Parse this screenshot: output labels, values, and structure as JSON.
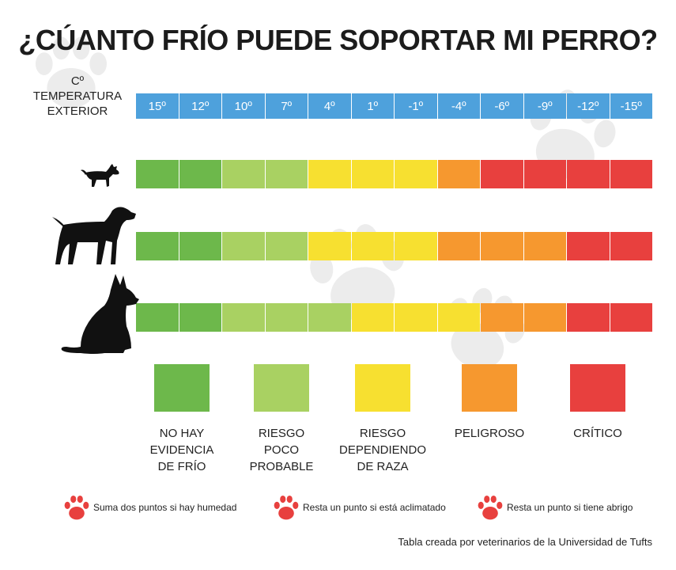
{
  "title": "¿CÚANTO FRÍO PUEDE SOPORTAR MI PERRO?",
  "temperature_label": "Cº\nTEMPERATURA\nEXTERIOR",
  "temperatures": [
    "15º",
    "12º",
    "10º",
    "7º",
    "4º",
    "1º",
    "-1º",
    "-4º",
    "-6º",
    "-9º",
    "-12º",
    "-15º"
  ],
  "colors": {
    "temp_blue": "#4ea1dc",
    "no_risk": "#6db84b",
    "low_risk": "#a9d162",
    "breed_risk": "#f7e030",
    "dangerous": "#f6982f",
    "critical": "#e8403e",
    "paw_red": "#e8403e",
    "paw_grey": "#e6e6e6"
  },
  "dog_rows": [
    {
      "size": "small",
      "icon": "small-dog-icon",
      "levels": [
        "no_risk",
        "no_risk",
        "low_risk",
        "low_risk",
        "breed_risk",
        "breed_risk",
        "breed_risk",
        "dangerous",
        "critical",
        "critical",
        "critical",
        "critical"
      ]
    },
    {
      "size": "medium",
      "icon": "medium-dog-icon",
      "levels": [
        "no_risk",
        "no_risk",
        "low_risk",
        "low_risk",
        "breed_risk",
        "breed_risk",
        "breed_risk",
        "dangerous",
        "dangerous",
        "dangerous",
        "critical",
        "critical"
      ]
    },
    {
      "size": "large",
      "icon": "large-dog-icon",
      "levels": [
        "no_risk",
        "no_risk",
        "low_risk",
        "low_risk",
        "low_risk",
        "breed_risk",
        "breed_risk",
        "breed_risk",
        "dangerous",
        "dangerous",
        "critical",
        "critical"
      ]
    }
  ],
  "legend": [
    {
      "level": "no_risk",
      "label": "NO HAY\nEVIDENCIA\nDE FRÍO"
    },
    {
      "level": "low_risk",
      "label": "RIESGO\nPOCO\nPROBABLE"
    },
    {
      "level": "breed_risk",
      "label": "RIESGO\nDEPENDIENDO\nDE RAZA"
    },
    {
      "level": "dangerous",
      "label": "PELIGROSO"
    },
    {
      "level": "critical",
      "label": "CRÍTICO"
    }
  ],
  "notes": [
    {
      "icon": "paw-icon",
      "text": "Suma dos puntos si hay humedad"
    },
    {
      "icon": "paw-icon",
      "text": "Resta un punto si está aclimatado"
    },
    {
      "icon": "paw-icon",
      "text": "Resta un punto si tiene abrigo"
    }
  ],
  "credit": "Tabla creada por veterinarios de la Universidad de Tufts"
}
